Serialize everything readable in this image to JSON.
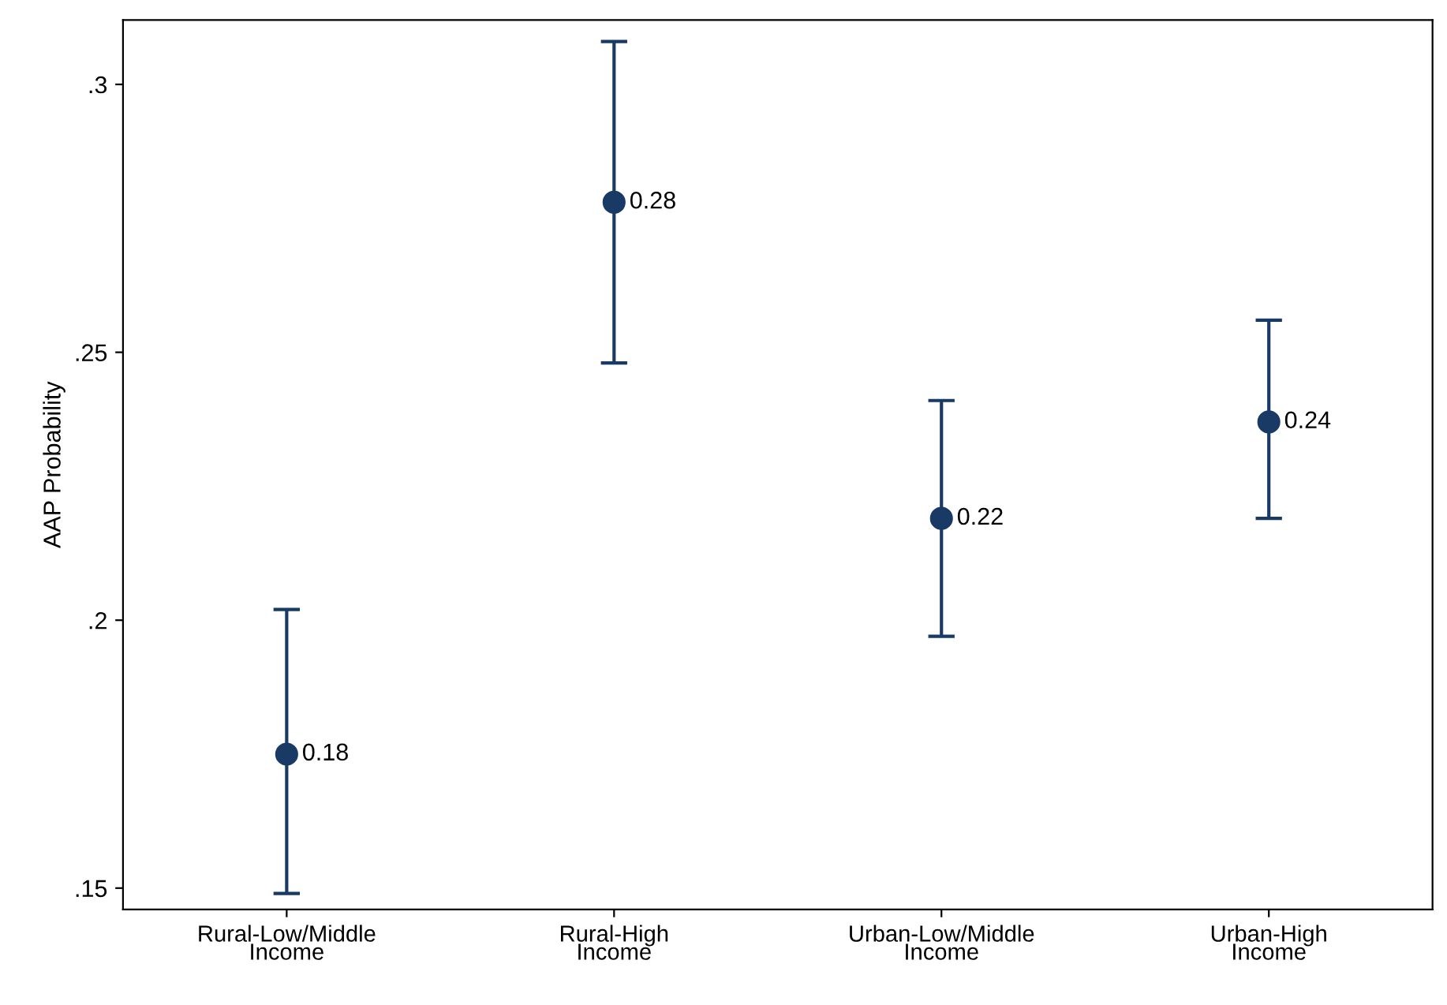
{
  "chart_data": {
    "type": "scatter",
    "ylabel": "AAP Probability",
    "categories": [
      "Rural-Low/Middle\nIncome",
      "Rural-High\nIncome",
      "Urban-Low/Middle\nIncome",
      "Urban-High\nIncome"
    ],
    "values": [
      0.175,
      0.278,
      0.219,
      0.237
    ],
    "errors": [
      [
        0.149,
        0.202
      ],
      [
        0.248,
        0.308
      ],
      [
        0.197,
        0.241
      ],
      [
        0.219,
        0.256
      ]
    ],
    "value_labels": [
      "0.18",
      "0.28",
      "0.22",
      "0.24"
    ],
    "color": "#1a3a66",
    "marker": "circle",
    "ylim": [
      0.146,
      0.312
    ],
    "yticks": [
      {
        "value": 0.15,
        "label": ".15"
      },
      {
        "value": 0.2,
        "label": ".2"
      },
      {
        "value": 0.25,
        "label": ".25"
      },
      {
        "value": 0.3,
        "label": ".3"
      }
    ],
    "grid": false
  }
}
